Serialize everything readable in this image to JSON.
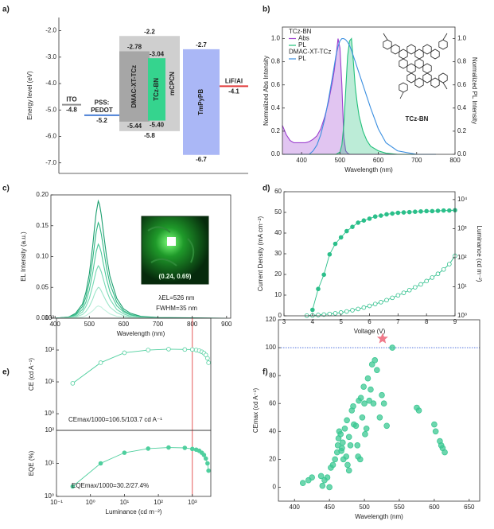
{
  "chart_data": [
    {
      "type": "energy-levels",
      "label": "a)",
      "ylabel": "Energy level (eV)",
      "box": false,
      "ylim": [
        -7.4,
        -1.5
      ],
      "yticks": [
        {
          "value": -2,
          "label": "-2.0"
        },
        {
          "value": -3,
          "label": "-3.0"
        },
        {
          "value": -4,
          "label": "-4.0"
        },
        {
          "value": -5,
          "label": "-5.0"
        },
        {
          "value": -6,
          "label": "-6.0"
        },
        {
          "value": -7,
          "label": "-7.0"
        }
      ],
      "categories": [
        "ITO",
        "PSS:\nPEDOT",
        "DMAC-XT-TCz",
        "TCz-BN",
        "mCPCN",
        "TmPyPB",
        "LiF/Al"
      ],
      "top": [
        -4.8,
        -5.2,
        -2.78,
        -3.04,
        -2.2,
        -2.7,
        -4.1
      ],
      "top_labels": [
        "-4.8",
        "-5.2",
        "-2.78",
        "-3.04",
        "-2.2",
        "-2.7",
        "-4.1"
      ],
      "bottom": [
        null,
        null,
        -5.44,
        -5.4,
        -5.8,
        -6.7,
        null
      ],
      "bottom_labels": [
        null,
        null,
        "-5.44",
        "-5.40",
        "-5.8",
        "-6.7",
        null
      ],
      "colors": [
        "#8c8c8c",
        "#4a7fd6",
        "#a6a6a6",
        "#35d48e",
        "#cfcfcf",
        "#aab7f6",
        "#e23b3b"
      ]
    },
    {
      "type": "line",
      "label": "b)",
      "xlabel": "Wavelength (nm)",
      "ylabel": "Normalized Abs Intensity",
      "y2label": "Normalized PL Intensity",
      "xlim": [
        350,
        800
      ],
      "xticks": [
        400,
        500,
        600,
        700,
        800
      ],
      "ylim": [
        0,
        1.1
      ],
      "yticks": [
        {
          "value": 0,
          "label": "0.0"
        },
        {
          "value": 0.2,
          "label": "0.2"
        },
        {
          "value": 0.4,
          "label": "0.4"
        },
        {
          "value": 0.6,
          "label": "0.6"
        },
        {
          "value": 0.8,
          "label": "0.8"
        },
        {
          "value": 1,
          "label": "1.0"
        }
      ],
      "y2lim": [
        0,
        1.1
      ],
      "y2ticks": [
        {
          "value": 0,
          "label": "0.0"
        },
        {
          "value": 0.2,
          "label": "0.2"
        },
        {
          "value": 0.4,
          "label": "0.4"
        },
        {
          "value": 0.6,
          "label": "0.6"
        },
        {
          "value": 0.8,
          "label": "0.8"
        },
        {
          "value": 1,
          "label": "1.0"
        }
      ],
      "legend": true,
      "annotations": [
        "TCz-BN"
      ],
      "x": [
        350,
        360,
        370,
        380,
        390,
        400,
        410,
        420,
        430,
        440,
        450,
        460,
        470,
        480,
        485,
        490,
        495,
        500,
        505,
        510,
        515,
        520,
        525,
        530,
        535,
        540,
        545,
        550,
        560,
        570,
        580,
        600,
        620,
        650,
        700,
        750
      ],
      "series": [
        {
          "name": "Abs",
          "group": "TCz-BN",
          "color": "#9b3fcf",
          "fill": true,
          "values": [
            0.25,
            0.17,
            0.12,
            0.1,
            0.1,
            0.1,
            0.1,
            0.11,
            0.13,
            0.16,
            0.22,
            0.32,
            0.45,
            0.62,
            0.72,
            0.85,
            1.0,
            0.92,
            0.6,
            0.15,
            0.03,
            0.01,
            0,
            0,
            0,
            0,
            0,
            0,
            0,
            0,
            0,
            0,
            0,
            0,
            0,
            0
          ]
        },
        {
          "name": "PL",
          "group": "TCz-BN",
          "color": "#22c07a",
          "fill": true,
          "axis": "y2",
          "values": [
            0,
            0,
            0,
            0,
            0,
            0,
            0,
            0,
            0,
            0,
            0,
            0,
            0,
            0,
            0,
            0,
            0.01,
            0.02,
            0.08,
            0.25,
            0.55,
            0.85,
            0.98,
            1.0,
            0.8,
            0.58,
            0.44,
            0.33,
            0.2,
            0.12,
            0.07,
            0.03,
            0.01,
            0,
            0,
            0
          ]
        },
        {
          "name": "PL",
          "group": "DMAC-XT-TCz",
          "color": "#3b8fe0",
          "axis": "y2",
          "values": [
            0,
            0,
            0,
            0,
            0,
            0,
            0,
            0,
            0.03,
            0.08,
            0.17,
            0.3,
            0.47,
            0.66,
            0.76,
            0.86,
            0.93,
            0.98,
            1.0,
            1.0,
            0.99,
            0.97,
            0.94,
            0.9,
            0.85,
            0.8,
            0.75,
            0.7,
            0.6,
            0.5,
            0.4,
            0.22,
            0.1,
            0.03,
            0,
            0
          ]
        }
      ]
    },
    {
      "type": "line",
      "label": "c)",
      "xlabel": "Wavelength (nm)",
      "ylabel": "EL Intensity (a.u.)",
      "xlim": [
        388,
        912
      ],
      "xticks": [
        400,
        500,
        600,
        700,
        800,
        900
      ],
      "ylim": [
        0,
        0.2
      ],
      "yticks": [
        {
          "value": 0,
          "label": "0.00"
        },
        {
          "value": 0.05,
          "label": "0.05"
        },
        {
          "value": 0.1,
          "label": "0.10"
        },
        {
          "value": 0.15,
          "label": "0.15"
        },
        {
          "value": 0.2,
          "label": "0.20"
        }
      ],
      "annotations": [
        "(0.24, 0.69)",
        "λEL=526 nm",
        "FWHM=35 nm"
      ],
      "x": [
        400,
        440,
        460,
        480,
        490,
        500,
        510,
        515,
        520,
        526,
        530,
        535,
        540,
        550,
        560,
        580,
        600,
        620,
        650,
        700,
        900
      ],
      "series": [
        {
          "color": "#1a9e6e",
          "values": [
            0,
            0.002,
            0.008,
            0.023,
            0.042,
            0.072,
            0.118,
            0.146,
            0.171,
            0.19,
            0.184,
            0.167,
            0.144,
            0.101,
            0.068,
            0.032,
            0.015,
            0.008,
            0.003,
            0.001,
            0
          ]
        },
        {
          "color": "#2fb683",
          "values": [
            0,
            0.002,
            0.006,
            0.019,
            0.034,
            0.059,
            0.096,
            0.119,
            0.14,
            0.155,
            0.15,
            0.136,
            0.118,
            0.082,
            0.056,
            0.026,
            0.012,
            0.006,
            0.002,
            0,
            0
          ]
        },
        {
          "color": "#4ec99a",
          "values": [
            0,
            0.001,
            0.005,
            0.014,
            0.026,
            0.046,
            0.074,
            0.092,
            0.108,
            0.12,
            0.116,
            0.106,
            0.091,
            0.064,
            0.043,
            0.02,
            0.01,
            0.005,
            0.002,
            0,
            0
          ]
        },
        {
          "color": "#74d8b2",
          "values": [
            0,
            0.001,
            0.003,
            0.01,
            0.019,
            0.032,
            0.053,
            0.065,
            0.077,
            0.085,
            0.082,
            0.075,
            0.065,
            0.045,
            0.031,
            0.014,
            0.007,
            0.003,
            0.001,
            0,
            0
          ]
        },
        {
          "color": "#9be5c8",
          "values": [
            0,
            0.001,
            0.002,
            0.006,
            0.011,
            0.019,
            0.031,
            0.039,
            0.045,
            0.05,
            0.049,
            0.044,
            0.038,
            0.027,
            0.018,
            0.009,
            0.004,
            0.002,
            0.001,
            0,
            0
          ]
        },
        {
          "color": "#c2f0de",
          "values": [
            0,
            0,
            0.001,
            0.002,
            0.004,
            0.008,
            0.012,
            0.015,
            0.018,
            0.02,
            0.019,
            0.018,
            0.015,
            0.011,
            0.007,
            0.003,
            0.002,
            0.001,
            0,
            0,
            0
          ]
        }
      ]
    },
    {
      "type": "line",
      "label": "d)",
      "xlabel": "Voltage (V)",
      "ylabel": "Current Density (mA cm⁻²)",
      "y2label": "Luminance (cd m⁻²)",
      "xlim": [
        3,
        9
      ],
      "xticks": [
        3,
        4,
        5,
        6,
        7,
        8,
        9
      ],
      "ylim": [
        0,
        60
      ],
      "yticks": [
        0,
        10,
        20,
        30,
        40,
        50,
        60
      ],
      "y2lim": [
        1,
        18600
      ],
      "y2log": true,
      "y2ticks": [
        {
          "value": 1,
          "label": "10⁰"
        },
        {
          "value": 10,
          "label": "10¹"
        },
        {
          "value": 100,
          "label": "10²"
        },
        {
          "value": 1000,
          "label": "10³"
        },
        {
          "value": 10000,
          "label": "10⁴"
        }
      ],
      "series": [
        {
          "color": "#2bbf8a",
          "marker": "filled",
          "axis": "y2",
          "x": [
            4.0,
            4.2,
            4.4,
            4.6,
            4.8,
            5.0,
            5.2,
            5.4,
            5.6,
            5.8,
            6.0,
            6.2,
            6.4,
            6.6,
            6.8,
            7.0,
            7.2,
            7.4,
            7.6,
            7.8,
            8.0,
            8.2,
            8.4,
            8.6,
            8.8,
            9.0
          ],
          "values": [
            1.6,
            8.4,
            26,
            130,
            300,
            500,
            820,
            1150,
            1600,
            1900,
            2200,
            2600,
            2800,
            3100,
            3300,
            3500,
            3600,
            3700,
            3800,
            3900,
            4000,
            4000,
            4100,
            4200,
            4200,
            4300
          ]
        },
        {
          "color": "#2bbf8a",
          "marker": "open",
          "x": [
            3.8,
            4.0,
            4.2,
            4.4,
            4.6,
            4.8,
            5.0,
            5.2,
            5.4,
            5.6,
            5.8,
            6.0,
            6.2,
            6.4,
            6.6,
            6.8,
            7.0,
            7.2,
            7.4,
            7.6,
            7.8,
            8.0,
            8.2,
            8.4,
            8.6,
            8.8,
            9.0
          ],
          "values": [
            0.1,
            0.2,
            0.4,
            0.6,
            0.9,
            1.2,
            1.6,
            2.1,
            2.7,
            3.3,
            4.0,
            4.8,
            5.7,
            6.6,
            7.6,
            8.7,
            9.9,
            11.1,
            12.4,
            13.8,
            15.2,
            16.8,
            18.5,
            20.3,
            22.4,
            25.0,
            29.0
          ]
        }
      ]
    },
    {
      "type": "line",
      "label": "e)",
      "ylabel": "CE (cd A⁻¹)",
      "xlim": [
        0.1,
        3500
      ],
      "xlog": true,
      "ylim": [
        0.3,
        1000
      ],
      "ylog": true,
      "yticks": [
        {
          "value": 1,
          "label": "10⁰"
        },
        {
          "value": 10,
          "label": "10¹"
        },
        {
          "value": 100,
          "label": "10²"
        },
        {
          "value": 1000,
          "label": "10³"
        }
      ],
      "vline": 1000,
      "annotations": [
        "CEmax/1000=106.5/103.7 cd A⁻¹"
      ],
      "series": [
        {
          "color": "#4fcf9e",
          "marker": "open",
          "x": [
            0.3,
            2,
            10,
            50,
            200,
            600,
            1000,
            1300,
            1600,
            1900,
            2200,
            2500,
            2800,
            3000
          ],
          "values": [
            9,
            40,
            82,
            100,
            106.5,
            104,
            103.7,
            100,
            95,
            88,
            80,
            70,
            55,
            40
          ]
        }
      ]
    },
    {
      "type": "line",
      "xlabel": "Luminance (cd m⁻²)",
      "ylabel": "EQE (%)",
      "xlim": [
        0.1,
        3500
      ],
      "xlog": true,
      "ylim": [
        1,
        100
      ],
      "ylog": true,
      "xticks": [
        {
          "value": 0.1,
          "label": "10⁻¹"
        },
        {
          "value": 1,
          "label": "10⁰"
        },
        {
          "value": 10,
          "label": "10¹"
        },
        {
          "value": 100,
          "label": "10²"
        },
        {
          "value": 1000,
          "label": "10³"
        }
      ],
      "yticks": [
        {
          "value": 1,
          "label": "10⁰"
        },
        {
          "value": 10,
          "label": "10¹"
        },
        {
          "value": 100,
          "label": "10²"
        }
      ],
      "vline": 1000,
      "annotations": [
        "EQEmax/1000=30.2/27.4%"
      ],
      "series": [
        {
          "color": "#4fcf9e",
          "marker": "filled",
          "x": [
            0.3,
            2,
            10,
            50,
            200,
            600,
            1000,
            1300,
            1600,
            1900,
            2200,
            2500,
            2800,
            3000
          ],
          "values": [
            2.0,
            10,
            21,
            28,
            30.2,
            29.5,
            27.4,
            26,
            24,
            21,
            18,
            14,
            10,
            6
          ]
        }
      ]
    },
    {
      "type": "scatter",
      "label": "f)",
      "xlabel": "Wavelength (nm)",
      "ylabel": "CEmax (cd A⁻¹)",
      "xlim": [
        377,
        665
      ],
      "xticks": [
        400,
        450,
        500,
        550,
        600,
        650
      ],
      "ylim": [
        -10,
        120
      ],
      "yticks": [
        0,
        20,
        40,
        60,
        80,
        100,
        120
      ],
      "hline": 100,
      "highlight": {
        "x": 526,
        "y": 106.5,
        "color": "#f07a8a"
      },
      "series": [
        {
          "color": "#3cc893",
          "marker": "filled",
          "x": [
            412,
            420,
            425,
            438,
            440,
            443,
            447,
            450,
            452,
            455,
            458,
            461,
            462,
            463,
            464,
            466,
            467,
            468,
            469,
            470,
            472,
            474,
            475,
            476,
            478,
            478,
            480,
            482,
            484,
            485,
            488,
            490,
            491,
            492,
            494,
            495,
            497,
            499,
            500,
            501,
            503,
            505,
            507,
            509,
            511,
            513,
            515,
            518,
            522,
            525,
            528,
            532,
            540,
            575,
            578,
            600,
            602,
            608,
            610,
            612,
            615
          ],
          "values": [
            3,
            5,
            7,
            8,
            1,
            5,
            7,
            0,
            14,
            16,
            20,
            25,
            30,
            35,
            40,
            38,
            26,
            28,
            32,
            20,
            42,
            22,
            48,
            16,
            12,
            36,
            30,
            55,
            58,
            45,
            44,
            30,
            22,
            62,
            20,
            64,
            50,
            72,
            60,
            38,
            42,
            78,
            62,
            70,
            88,
            60,
            91,
            84,
            50,
            66,
            60,
            44,
            100,
            57,
            55,
            45,
            40,
            33,
            30,
            28,
            25
          ]
        }
      ]
    }
  ]
}
